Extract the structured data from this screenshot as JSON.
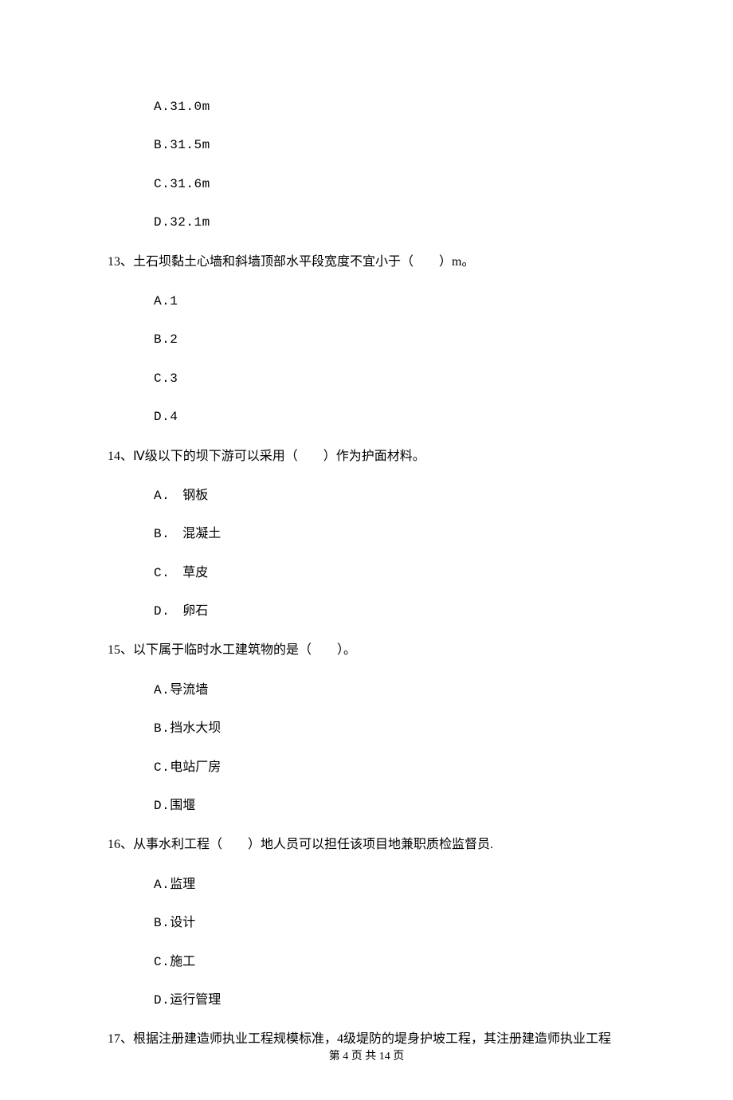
{
  "prev_options": [
    {
      "label": "A.",
      "text": "31.0m"
    },
    {
      "label": "B.",
      "text": "31.5m"
    },
    {
      "label": "C.",
      "text": "31.6m"
    },
    {
      "label": "D.",
      "text": "32.1m"
    }
  ],
  "questions": [
    {
      "number": "13、",
      "text": "土石坝黏土心墙和斜墙顶部水平段宽度不宜小于（　　）m。",
      "options": [
        {
          "label": "A.",
          "text": "1"
        },
        {
          "label": "B.",
          "text": "2"
        },
        {
          "label": "C.",
          "text": "3"
        },
        {
          "label": "D.",
          "text": "4"
        }
      ]
    },
    {
      "number": "14、",
      "text": "Ⅳ级以下的坝下游可以采用（　　）作为护面材料。",
      "options": [
        {
          "label": "A.",
          "text": "　钢板"
        },
        {
          "label": "B.",
          "text": "　混凝土"
        },
        {
          "label": "C.",
          "text": "　草皮"
        },
        {
          "label": "D.",
          "text": "　卵石"
        }
      ]
    },
    {
      "number": "15、",
      "text": "以下属于临时水工建筑物的是（　　）。",
      "options": [
        {
          "label": "A.",
          "text": "导流墙"
        },
        {
          "label": "B.",
          "text": "挡水大坝"
        },
        {
          "label": "C.",
          "text": "电站厂房"
        },
        {
          "label": "D.",
          "text": "围堰"
        }
      ]
    },
    {
      "number": "16、",
      "text": "从事水利工程（　　）地人员可以担任该项目地兼职质检监督员.",
      "options": [
        {
          "label": "A.",
          "text": "监理"
        },
        {
          "label": "B.",
          "text": "设计"
        },
        {
          "label": "C.",
          "text": "施工"
        },
        {
          "label": "D.",
          "text": "运行管理"
        }
      ]
    },
    {
      "number": "17、",
      "text": "根据注册建造师执业工程规模标准，4级堤防的堤身护坡工程，其注册建造师执业工程",
      "options": []
    }
  ],
  "footer": "第 4 页 共 14 页"
}
